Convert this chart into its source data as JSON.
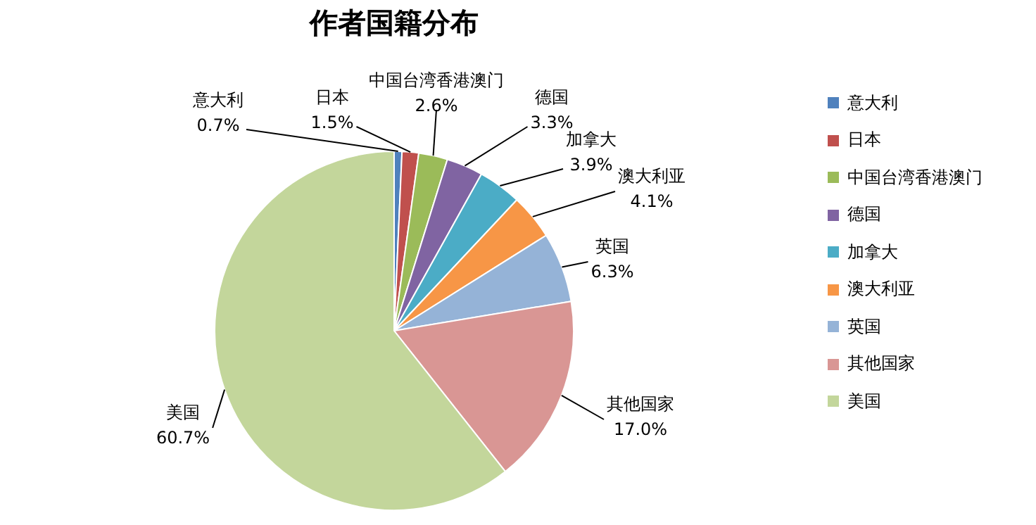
{
  "chart_data": {
    "type": "pie",
    "title": "作者国籍分布",
    "categories": [
      "意大利",
      "日本",
      "中国台湾香港澳门",
      "德国",
      "加拿大",
      "澳大利亚",
      "英国",
      "其他国家",
      "美国"
    ],
    "values": [
      0.7,
      1.5,
      2.6,
      3.3,
      3.9,
      4.1,
      6.3,
      17.0,
      60.7
    ],
    "value_labels": [
      "0.7%",
      "1.5%",
      "2.6%",
      "3.3%",
      "3.9%",
      "4.1%",
      "6.3%",
      "17.0%",
      "60.7%"
    ],
    "colors": [
      "#4f81bd",
      "#c0504d",
      "#9bbb59",
      "#8064a2",
      "#4bacc6",
      "#f79646",
      "#95b3d7",
      "#d99694",
      "#c3d69b"
    ],
    "legend": "right"
  }
}
